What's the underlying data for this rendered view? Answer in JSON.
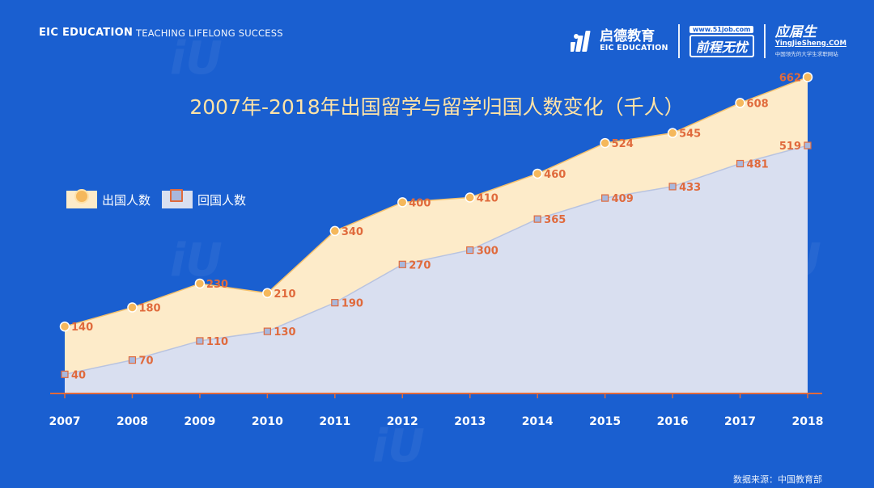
{
  "header": {
    "brand": "EIC EDUCATION",
    "tagline": "TEACHING LIFELONG SUCCESS"
  },
  "logos": {
    "eic_cn": "启德教育",
    "eic_en": "EIC EDUCATION",
    "job51_url": "www.51job.com",
    "job51_name": "前程无忧",
    "yjs_cn": "应届生",
    "yjs_url": "YingJieSheng.COM",
    "yjs_sub": "中国领先的大学生求职网站"
  },
  "watermark": {
    "text": "iU"
  },
  "colors": {
    "background": "#1a5fd0",
    "out_fill": "#fdebc9",
    "out_line": "#f5c16c",
    "out_marker": "#f5b85c",
    "ret_fill": "#d9dff0",
    "ret_line": "#b8c3e0",
    "ret_marker_border": "#e06a3c",
    "label": "#e06a3c",
    "title": "#ffe3a6"
  },
  "source": "数据来源：中国教育部",
  "chart_data": {
    "type": "area",
    "title": "2007年-2018年出国留学与留学归国人数变化（千人）",
    "x": [
      "2007",
      "2008",
      "2009",
      "2010",
      "2011",
      "2012",
      "2013",
      "2014",
      "2015",
      "2016",
      "2017",
      "2018"
    ],
    "series": [
      {
        "name": "出国人数",
        "marker": "circle",
        "values": [
          140,
          180,
          230,
          210,
          340,
          400,
          410,
          460,
          524,
          545,
          608,
          662
        ]
      },
      {
        "name": "回国人数",
        "marker": "square",
        "values": [
          40,
          70,
          110,
          130,
          190,
          270,
          300,
          365,
          409,
          433,
          481,
          519
        ]
      }
    ],
    "ylim": [
      0,
      700
    ],
    "grid": false,
    "legend": "top-left"
  }
}
